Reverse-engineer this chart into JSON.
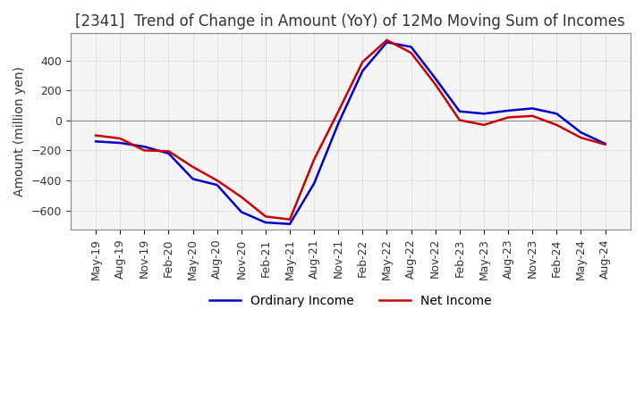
{
  "title": "[2341]  Trend of Change in Amount (YoY) of 12Mo Moving Sum of Incomes",
  "ylabel": "Amount (million yen)",
  "line_colors": [
    "#0000CC",
    "#CC0000"
  ],
  "line_labels": [
    "Ordinary Income",
    "Net Income"
  ],
  "x_labels": [
    "May-19",
    "Aug-19",
    "Nov-19",
    "Feb-20",
    "May-20",
    "Aug-20",
    "Nov-20",
    "Feb-21",
    "May-21",
    "Aug-21",
    "Nov-21",
    "Feb-22",
    "May-22",
    "Aug-22",
    "Nov-22",
    "Feb-23",
    "May-23",
    "Aug-23",
    "Nov-23",
    "Feb-24",
    "May-24",
    "Aug-24"
  ],
  "ordinary_income": [
    -140,
    -150,
    -175,
    -220,
    -390,
    -430,
    -610,
    -680,
    -690,
    -420,
    -20,
    330,
    520,
    490,
    280,
    60,
    45,
    65,
    80,
    45,
    -80,
    -155
  ],
  "net_income": [
    -100,
    -120,
    -200,
    -205,
    -310,
    -400,
    -510,
    -640,
    -660,
    -260,
    60,
    390,
    535,
    450,
    240,
    2,
    -30,
    20,
    30,
    -30,
    -115,
    -160
  ],
  "ylim": [
    -730,
    580
  ],
  "yticks": [
    -600,
    -400,
    -200,
    0,
    200,
    400
  ],
  "background_color": "#ffffff",
  "plot_bg_color": "#f5f5f8",
  "title_fontsize": 12,
  "axis_fontsize": 10,
  "tick_fontsize": 9,
  "legend_fontsize": 10,
  "line_width": 1.8
}
